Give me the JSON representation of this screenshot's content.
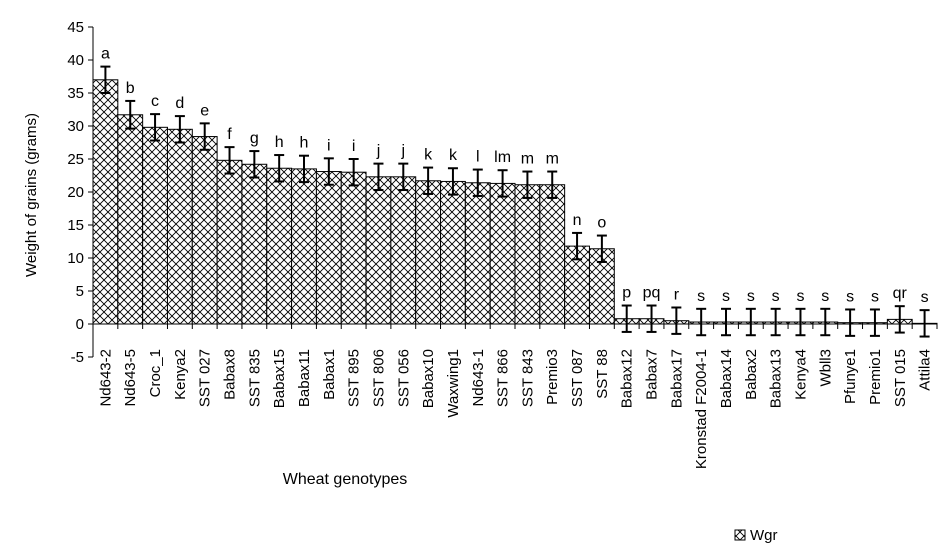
{
  "chart_data": {
    "type": "bar",
    "title": "",
    "xlabel": "Wheat genotypes",
    "ylabel": "Weight of grains (grams)",
    "ylim": [
      -5,
      45
    ],
    "y_ticks": [
      -5,
      0,
      5,
      10,
      15,
      20,
      25,
      30,
      35,
      40,
      45
    ],
    "grid": false,
    "legend_position": "bottom-right",
    "categories": [
      "Nd643-2",
      "Nd643-5",
      "Croc_1",
      "Kenya2",
      "SST 027",
      "Babax8",
      "SST 835",
      "Babax15",
      "Babax11",
      "Babax1",
      "SST 895",
      "SST 806",
      "SST 056",
      "Babax10",
      "Waxwing1",
      "Nd643-1",
      "SST 866",
      "SST 843",
      "Premio3",
      "SST 087",
      "SST 88",
      "Babax12",
      "Babax7",
      "Babax17",
      "Kronstad F2004-1",
      "Babax14",
      "Babax2",
      "Babax13",
      "Kenya4",
      "Wbll3",
      "Pfunye1",
      "Premio1",
      "SST 015",
      "Attila4"
    ],
    "series": [
      {
        "name": "Wgr",
        "values": [
          37.0,
          31.7,
          29.8,
          29.5,
          28.4,
          24.8,
          24.2,
          23.6,
          23.5,
          23.1,
          23.0,
          22.3,
          22.3,
          21.7,
          21.6,
          21.4,
          21.3,
          21.1,
          21.1,
          11.8,
          11.4,
          0.8,
          0.8,
          0.5,
          0.3,
          0.3,
          0.3,
          0.3,
          0.3,
          0.3,
          0.2,
          0.2,
          0.7,
          0.1
        ],
        "error": [
          2.0,
          2.1,
          2.0,
          2.0,
          2.0,
          2.0,
          2.0,
          2.0,
          2.0,
          2.0,
          2.0,
          2.0,
          2.0,
          2.0,
          2.0,
          2.0,
          2.0,
          2.0,
          2.0,
          2.0,
          2.0,
          2.0,
          2.0,
          2.0,
          2.0,
          2.0,
          2.0,
          2.0,
          2.0,
          2.0,
          2.0,
          2.0,
          2.0,
          2.0
        ],
        "significance_letters": [
          "a",
          "b",
          "c",
          "d",
          "e",
          "f",
          "g",
          "h",
          "h",
          "i",
          "i",
          "j",
          "j",
          "k",
          "k",
          "l",
          "lm",
          "m",
          "m",
          "n",
          "o",
          "p",
          "pq",
          "r",
          "s",
          "s",
          "s",
          "s",
          "s",
          "s",
          "s",
          "s",
          "qr",
          "s"
        ],
        "pattern": "crosshatch",
        "color": "#000000"
      }
    ]
  }
}
